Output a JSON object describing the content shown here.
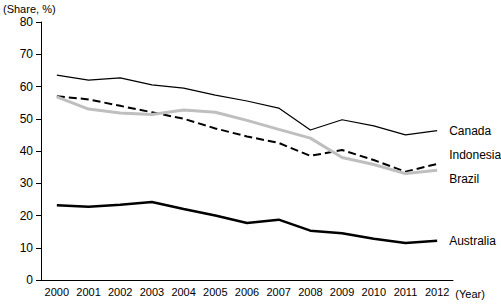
{
  "chart_data": {
    "type": "line",
    "y_label": "(Share, %)",
    "x_label": "(Year)",
    "categories": [
      "2000",
      "2001",
      "2002",
      "2003",
      "2004",
      "2005",
      "2006",
      "2007",
      "2008",
      "2009",
      "2010",
      "2011",
      "2012"
    ],
    "series": [
      {
        "name": "Canada",
        "color": "#000000",
        "line_style": "solid",
        "values": [
          63.5,
          62,
          62.7,
          60.5,
          59.5,
          57.3,
          55.5,
          53.3,
          46.5,
          49.7,
          47.8,
          45,
          46.3
        ]
      },
      {
        "name": "Indonesia",
        "color": "#000000",
        "line_style": "dashed",
        "values": [
          57,
          56,
          54,
          52,
          50,
          47,
          44.5,
          42.5,
          38.5,
          40.3,
          37.2,
          33.6,
          36
        ]
      },
      {
        "name": "Brazil",
        "color": "#bfbfbf",
        "line_style": "solid",
        "values": [
          56.8,
          53,
          51.8,
          51.3,
          52.7,
          52,
          49.5,
          46.7,
          44,
          38,
          35.8,
          33,
          34
        ]
      },
      {
        "name": "Australia",
        "color": "#000000",
        "line_style": "solid",
        "values": [
          23.2,
          22.7,
          23.3,
          24.2,
          22,
          20,
          17.7,
          18.7,
          15.3,
          14.5,
          12.8,
          11.5,
          12.2
        ]
      }
    ],
    "ylim": [
      0,
      80
    ],
    "yticks": [
      0,
      10,
      20,
      30,
      40,
      50,
      60,
      70,
      80
    ],
    "grid": false,
    "legend": "none"
  }
}
